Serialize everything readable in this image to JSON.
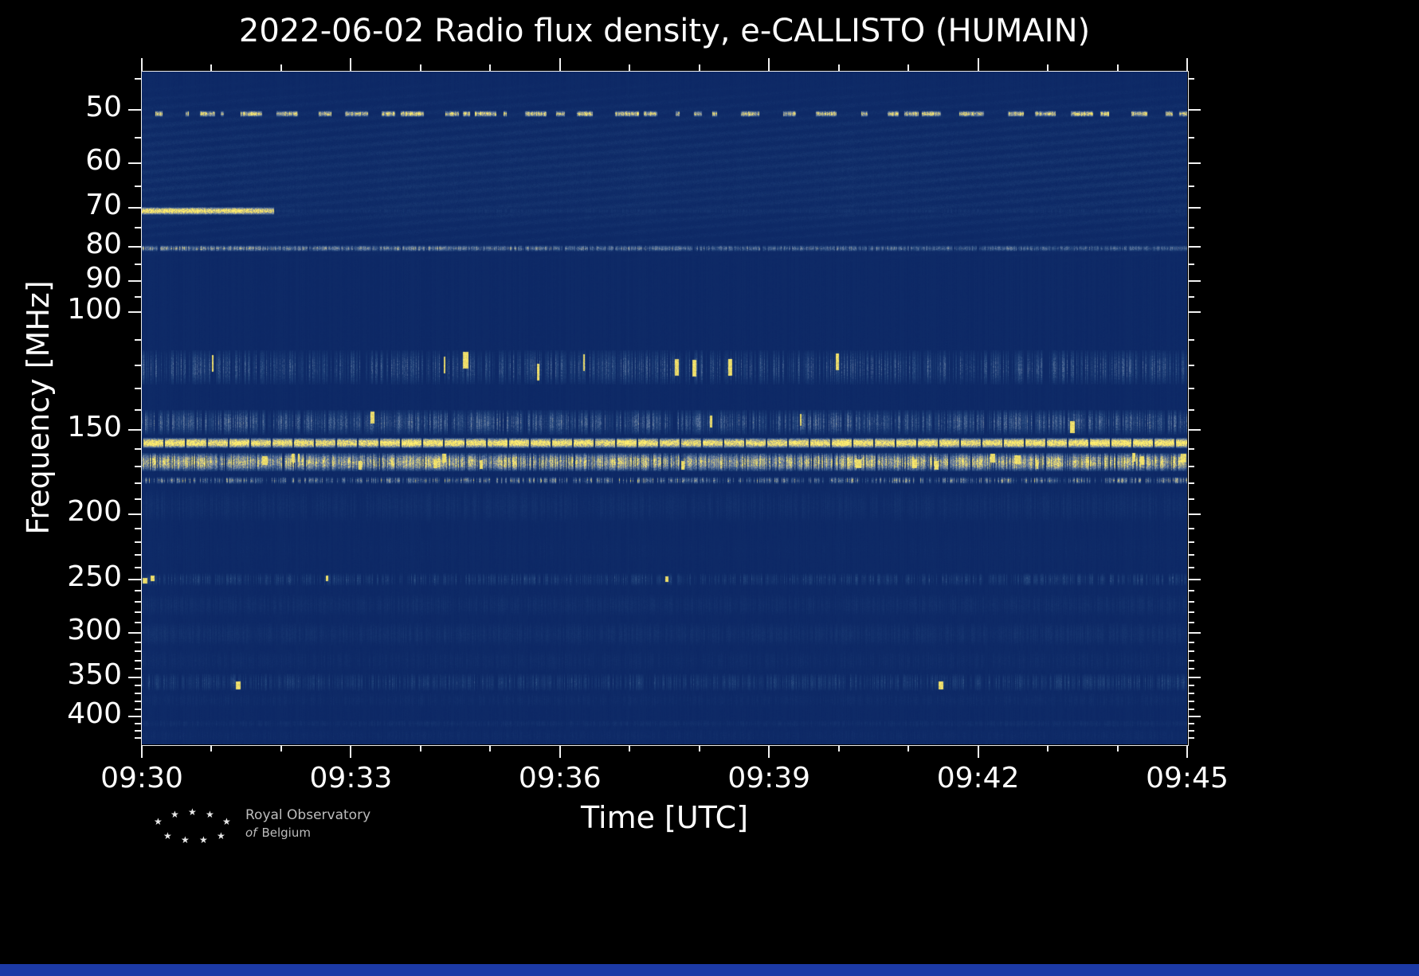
{
  "chart": {
    "title": "2022-06-02 Radio flux density, e-CALLISTO (HUMAIN)",
    "xlabel": "Time [UTC]",
    "ylabel": "Frequency [MHz]"
  },
  "branding": {
    "line1": "Royal Observatory",
    "line2_italic": "of",
    "line2_rest": "Belgium"
  },
  "page": {
    "background": "#000000",
    "footer_strip_color": "#1c3aa6"
  },
  "chart_data": {
    "type": "heatmap",
    "title": "2022-06-02 Radio flux density, e-CALLISTO (HUMAIN)",
    "xlabel": "Time [UTC]",
    "ylabel": "Frequency [MHz]",
    "instrument": "e-CALLISTO (HUMAIN)",
    "date": "2022-06-02",
    "x_ticks": [
      "09:30",
      "09:33",
      "09:36",
      "09:39",
      "09:42",
      "09:45"
    ],
    "x_total_minutes": 15,
    "x_major_every_minutes": 3,
    "y_scale": "log",
    "y_axis_inverted": true,
    "y_range_mhz": [
      43.9,
      440
    ],
    "y_ticks": [
      50,
      60,
      70,
      80,
      90,
      100,
      150,
      200,
      250,
      300,
      350,
      400
    ],
    "y_minor_ticks": [
      45,
      55,
      65,
      75,
      85,
      95,
      110,
      120,
      130,
      140,
      160,
      170,
      180,
      190,
      210,
      220,
      230,
      240,
      260,
      270,
      280,
      290,
      310,
      320,
      330,
      340,
      360,
      370,
      380,
      390,
      410,
      420,
      430
    ],
    "grid": false,
    "legend": "none",
    "background_level": 0.05,
    "colormap_stops": [
      [
        0.0,
        "#0a2462"
      ],
      [
        0.3,
        "#1e4078"
      ],
      [
        0.55,
        "#60789f"
      ],
      [
        0.75,
        "#b4b18e"
      ],
      [
        0.88,
        "#ecdb60"
      ],
      [
        1.0,
        "#ffef73"
      ]
    ],
    "bands": [
      {
        "name": "upper-texture-45-84mhz",
        "f0": 45,
        "f1": 84,
        "style": "wave",
        "base": 0.085,
        "var": 0.1
      },
      {
        "name": "upper-lighter-block",
        "f0": 52,
        "f1": 79,
        "t0": 0.09,
        "t1": 0.75,
        "style": "noise",
        "base": 0.07,
        "var": 0.08
      },
      {
        "name": "50mhz-intermittent-dashes",
        "f0": 50.2,
        "f1": 51.2,
        "style": "dashes",
        "base": 0.6,
        "var": 0.38
      },
      {
        "name": "70mhz-bright-line-start-only",
        "f0": 69.8,
        "f1": 71.5,
        "t0": 0.0,
        "t1": 0.127,
        "style": "solid",
        "base": 0.93,
        "var": 0.1
      },
      {
        "name": "70mhz-faint-continuation",
        "f0": 69.9,
        "f1": 71.3,
        "t0": 0.127,
        "t1": 1.0,
        "style": "noise",
        "base": 0.13,
        "var": 0.12
      },
      {
        "name": "80mhz-line",
        "f0": 79.6,
        "f1": 81.2,
        "style": "speckle",
        "density": 0.85,
        "base": 0.42,
        "var": 0.35,
        "fade": 0.35
      },
      {
        "name": "120mhz-speckle-band",
        "f0": 114,
        "f1": 128,
        "style": "speckle",
        "density": 0.55,
        "base": 0.16,
        "var": 0.3,
        "blob": 0.006
      },
      {
        "name": "145mhz-speckle-band",
        "f0": 140,
        "f1": 152,
        "style": "speckle",
        "density": 0.7,
        "base": 0.18,
        "var": 0.35,
        "blob": 0.004
      },
      {
        "name": "157mhz-bright-continuous-line",
        "f0": 154,
        "f1": 159,
        "style": "solid",
        "base": 0.97,
        "var": 0.05,
        "gap_every": 27,
        "gap_w": 2
      },
      {
        "name": "167mhz-bursty-band",
        "f0": 162,
        "f1": 172,
        "style": "speckle",
        "density": 0.85,
        "base": 0.5,
        "var": 0.45,
        "blob": 0.01
      },
      {
        "name": "178mhz-dotted-line",
        "f0": 176,
        "f1": 180,
        "style": "speckle",
        "density": 0.5,
        "base": 0.3,
        "var": 0.45
      },
      {
        "name": "190mhz-noise-band",
        "f0": 183,
        "f1": 206,
        "style": "noise",
        "base": 0.1,
        "var": 0.12
      },
      {
        "name": "220mhz-faint-band",
        "f0": 212,
        "f1": 240,
        "style": "noise",
        "base": 0.055,
        "var": 0.06
      },
      {
        "name": "250mhz-line-with-dashes",
        "f0": 245,
        "f1": 255,
        "style": "speckle",
        "density": 0.5,
        "base": 0.14,
        "var": 0.2,
        "blob": 0.005
      },
      {
        "name": "275mhz-noise-band",
        "f0": 262,
        "f1": 284,
        "style": "noise",
        "base": 0.1,
        "var": 0.12
      },
      {
        "name": "300mhz-noise-band",
        "f0": 289,
        "f1": 314,
        "style": "noise",
        "base": 0.11,
        "var": 0.14
      },
      {
        "name": "330mhz-faint-band",
        "f0": 317,
        "f1": 343,
        "style": "noise",
        "base": 0.08,
        "var": 0.1
      },
      {
        "name": "350mhz-speckle-band",
        "f0": 345,
        "f1": 366,
        "style": "speckle",
        "density": 0.6,
        "base": 0.12,
        "var": 0.2,
        "blob": 0.004
      },
      {
        "name": "375mhz-faint-band",
        "f0": 368,
        "f1": 388,
        "style": "noise",
        "base": 0.08,
        "var": 0.1
      },
      {
        "name": "410mhz-line",
        "f0": 404,
        "f1": 414,
        "style": "noise",
        "base": 0.1,
        "var": 0.12
      },
      {
        "name": "bottom-noise-band",
        "f0": 416,
        "f1": 438,
        "style": "noise",
        "base": 0.07,
        "var": 0.09
      }
    ]
  }
}
